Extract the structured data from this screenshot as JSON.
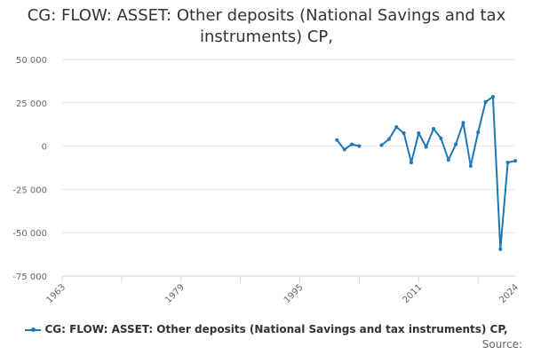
{
  "colors": {
    "series": "#1f77b4",
    "grid": "#e6e6e6",
    "axis": "#ccd6eb"
  },
  "chart_data": {
    "type": "line",
    "title": "CG: FLOW: ASSET: Other deposits (National Savings and tax instruments) CP,",
    "xlabel": "",
    "ylabel": "",
    "xlim": [
      1963,
      2024
    ],
    "ylim": [
      -75000,
      50000
    ],
    "x_ticks": [
      "1963",
      "1979",
      "1995",
      "2011",
      "2024"
    ],
    "y_ticks": [
      "50 000",
      "25 000",
      "0",
      "-25 000",
      "-50 000",
      "-75 000"
    ],
    "grid": "horizontal",
    "legend": {
      "position": "bottom",
      "label": "CG: FLOW: ASSET: Other deposits (National Savings and tax instruments) CP,"
    },
    "source_label": "Source:",
    "series": [
      {
        "name": "CG: FLOW: ASSET: Other deposits (National Savings and tax instruments) CP,",
        "segments": [
          [
            [
              2000,
              3500
            ],
            [
              2001,
              -2000
            ],
            [
              2002,
              1000
            ],
            [
              2003,
              0
            ]
          ],
          [
            [
              2006,
              500
            ],
            [
              2007,
              4000
            ],
            [
              2008,
              11000
            ],
            [
              2009,
              7500
            ],
            [
              2010,
              -9500
            ],
            [
              2011,
              7500
            ],
            [
              2012,
              -500
            ],
            [
              2013,
              10000
            ],
            [
              2014,
              4500
            ],
            [
              2015,
              -8000
            ],
            [
              2016,
              1000
            ],
            [
              2017,
              13500
            ],
            [
              2018,
              -11500
            ],
            [
              2019,
              8000
            ],
            [
              2020,
              25500
            ],
            [
              2021,
              28500
            ],
            [
              2022,
              -59500
            ],
            [
              2023,
              -9500
            ],
            [
              2024,
              -8500
            ]
          ]
        ]
      }
    ]
  }
}
